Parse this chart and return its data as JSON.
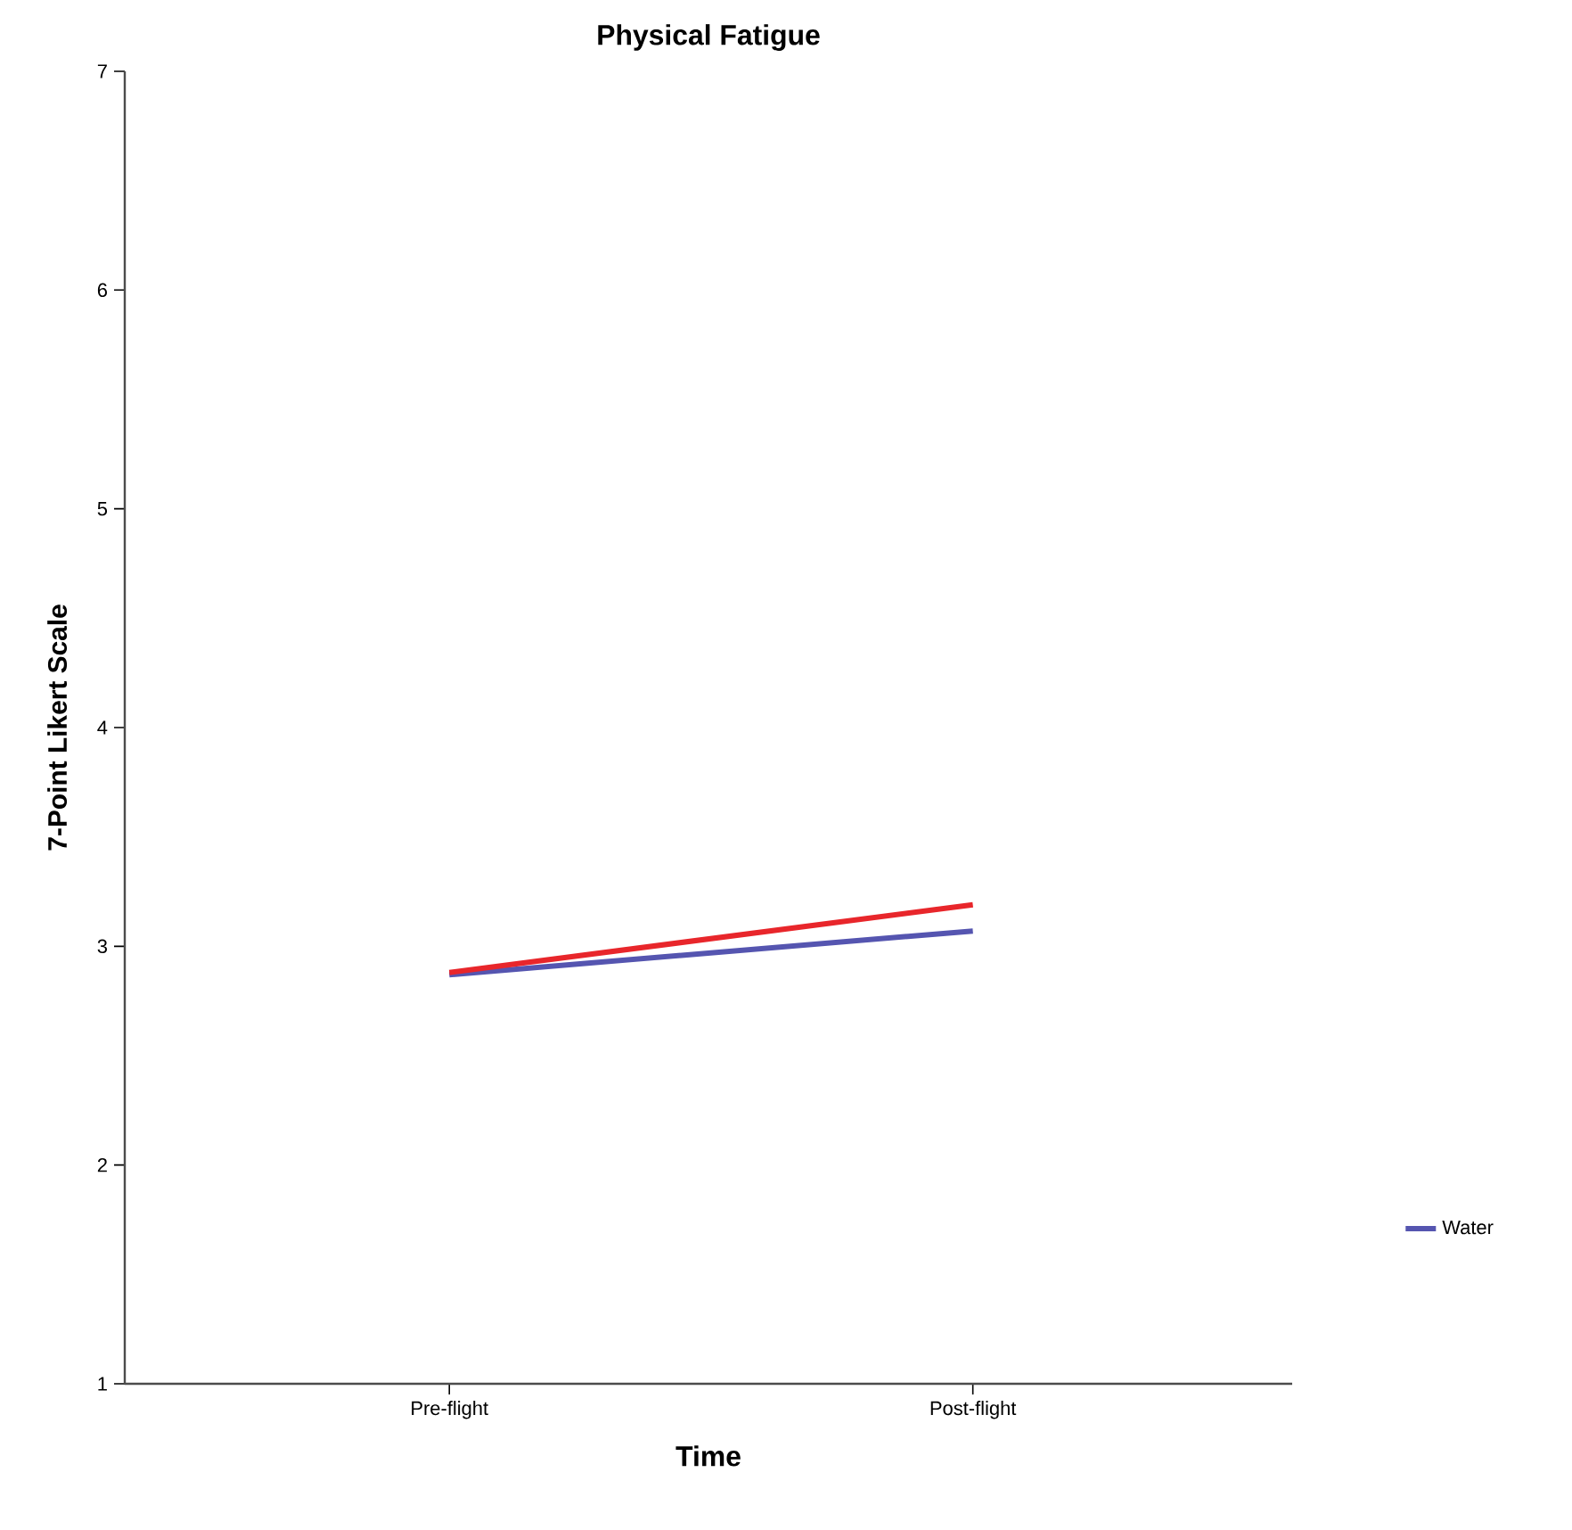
{
  "chart_data": {
    "type": "line",
    "title": "Physical Fatigue",
    "xlabel": "Time",
    "ylabel": "7-Point Likert Scale",
    "categories": [
      "Pre-flight",
      "Post-flight"
    ],
    "series": [
      {
        "name": "Water",
        "color": "#5555b0",
        "values": [
          2.87,
          3.07
        ]
      },
      {
        "color": "#e8262b",
        "values": [
          2.88,
          3.19
        ]
      }
    ],
    "ylim": [
      1,
      7
    ],
    "yticks": [
      1,
      2,
      3,
      4,
      5,
      6,
      7
    ],
    "legend": "right",
    "marker": "none",
    "line_style": "solid",
    "grid": false
  }
}
